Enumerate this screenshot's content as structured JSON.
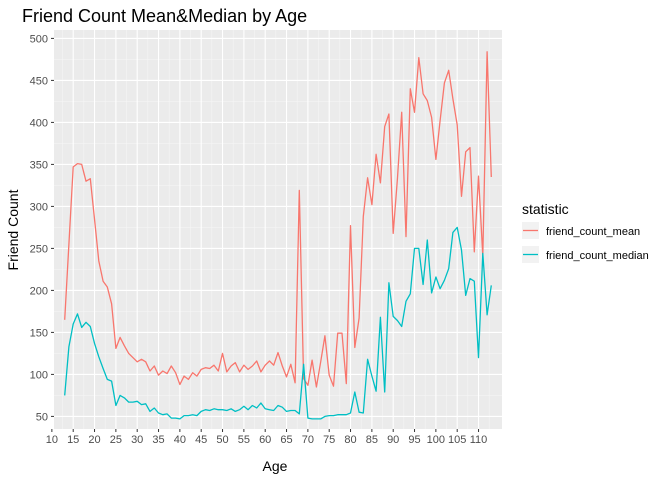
{
  "chart_data": {
    "type": "line",
    "title": "Friend Count Mean&Median by Age",
    "xlabel": "Age",
    "ylabel": "Friend Count",
    "xlim": [
      10.5,
      115.5
    ],
    "ylim": [
      35,
      510
    ],
    "x_ticks": [
      "10",
      "15",
      "20",
      "25",
      "30",
      "35",
      "40",
      "45",
      "50",
      "55",
      "60",
      "65",
      "70",
      "75",
      "80",
      "85",
      "90",
      "95",
      "100",
      "105",
      "110"
    ],
    "y_ticks": [
      "50",
      "100",
      "150",
      "200",
      "250",
      "300",
      "350",
      "400",
      "450",
      "500"
    ],
    "x_tick_values": [
      10,
      15,
      20,
      25,
      30,
      35,
      40,
      45,
      50,
      55,
      60,
      65,
      70,
      75,
      80,
      85,
      90,
      95,
      100,
      105,
      110
    ],
    "y_tick_values": [
      50,
      100,
      150,
      200,
      250,
      300,
      350,
      400,
      450,
      500
    ],
    "grid": true,
    "legend_position": "right",
    "legend_title": "statistic",
    "x": [
      13,
      14,
      15,
      16,
      17,
      18,
      19,
      20,
      21,
      22,
      23,
      24,
      25,
      26,
      27,
      28,
      29,
      30,
      31,
      32,
      33,
      34,
      35,
      36,
      37,
      38,
      39,
      40,
      41,
      42,
      43,
      44,
      45,
      46,
      47,
      48,
      49,
      50,
      51,
      52,
      53,
      54,
      55,
      56,
      57,
      58,
      59,
      60,
      61,
      62,
      63,
      64,
      65,
      66,
      67,
      68,
      69,
      70,
      71,
      72,
      73,
      74,
      75,
      76,
      77,
      78,
      79,
      80,
      81,
      82,
      83,
      84,
      85,
      86,
      87,
      88,
      89,
      90,
      91,
      92,
      93,
      94,
      95,
      96,
      97,
      98,
      99,
      100,
      101,
      102,
      103,
      104,
      105,
      106,
      107,
      108,
      109,
      110,
      111,
      112,
      113
    ],
    "series": [
      {
        "name": "friend_count_mean",
        "color": "#F8766D",
        "values": [
          165,
          255,
          347,
          351,
          350,
          330,
          333,
          285,
          235,
          211,
          204,
          184,
          131,
          144,
          134,
          125,
          120,
          115,
          118,
          115,
          104,
          110,
          99,
          104,
          101,
          110,
          102,
          88,
          98,
          94,
          102,
          98,
          106,
          108,
          107,
          111,
          104,
          125,
          103,
          110,
          114,
          103,
          111,
          106,
          110,
          116,
          103,
          111,
          116,
          111,
          126,
          110,
          97,
          112,
          90,
          319,
          95,
          87,
          117,
          85,
          115,
          146,
          99,
          86,
          149,
          149,
          89,
          277,
          132,
          167,
          288,
          334,
          302,
          362,
          328,
          395,
          410,
          268,
          334,
          412,
          264,
          440,
          412,
          477,
          434,
          426,
          406,
          356,
          402,
          447,
          462,
          428,
          397,
          312,
          365,
          370,
          246,
          336,
          241,
          484,
          335
        ]
      },
      {
        "name": "friend_count_median",
        "color": "#00BFC4",
        "values": [
          75,
          133,
          160,
          172,
          156,
          162,
          157,
          137,
          121,
          107,
          94,
          92,
          63,
          75,
          72,
          67,
          67,
          68,
          64,
          65,
          56,
          60,
          54,
          52,
          53,
          48,
          48,
          47,
          51,
          51,
          52,
          51,
          56,
          58,
          57,
          59,
          58,
          58,
          57,
          59,
          56,
          58,
          62,
          58,
          63,
          60,
          66,
          59,
          58,
          57,
          63,
          61,
          56,
          57,
          57,
          53,
          112,
          48,
          47,
          47,
          47,
          50,
          51,
          51,
          52,
          52,
          52,
          54,
          79,
          55,
          54,
          118,
          98,
          80,
          168,
          79,
          209,
          169,
          164,
          157,
          187,
          196,
          250,
          250,
          207,
          260,
          197,
          216,
          202,
          212,
          226,
          269,
          275,
          248,
          194,
          214,
          211,
          120,
          244,
          171,
          206
        ]
      }
    ]
  }
}
